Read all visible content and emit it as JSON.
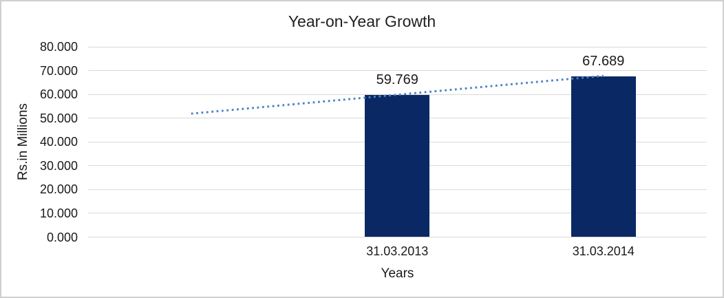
{
  "chart_data": {
    "type": "bar",
    "title": "Year-on-Year Growth",
    "xlabel": "Years",
    "ylabel": "Rs.in Millions",
    "categories": [
      "",
      "31.03.2013",
      "31.03.2014"
    ],
    "values": [
      null,
      59.769,
      67.689
    ],
    "data_labels": [
      null,
      "59.769",
      "67.689"
    ],
    "ylim": [
      0,
      80
    ],
    "y_tick_step": 10,
    "y_tick_labels": [
      "0.000",
      "10.000",
      "20.000",
      "30.000",
      "40.000",
      "50.000",
      "60.000",
      "70.000",
      "80.000"
    ],
    "grid": true,
    "legend": "none",
    "bar_color": "#0A2864",
    "gridline_color": "#D9D9D9",
    "axis_line_color": "#D9D9D9",
    "text_color": "#1A1A1A",
    "chart_border_color": "#CFCFCF",
    "trendline": {
      "type": "linear",
      "style": "dotted",
      "color": "#4E82C9",
      "points": [
        {
          "slot": 0,
          "value": 51.9
        },
        {
          "slot": 2,
          "value": 67.8
        }
      ]
    }
  }
}
